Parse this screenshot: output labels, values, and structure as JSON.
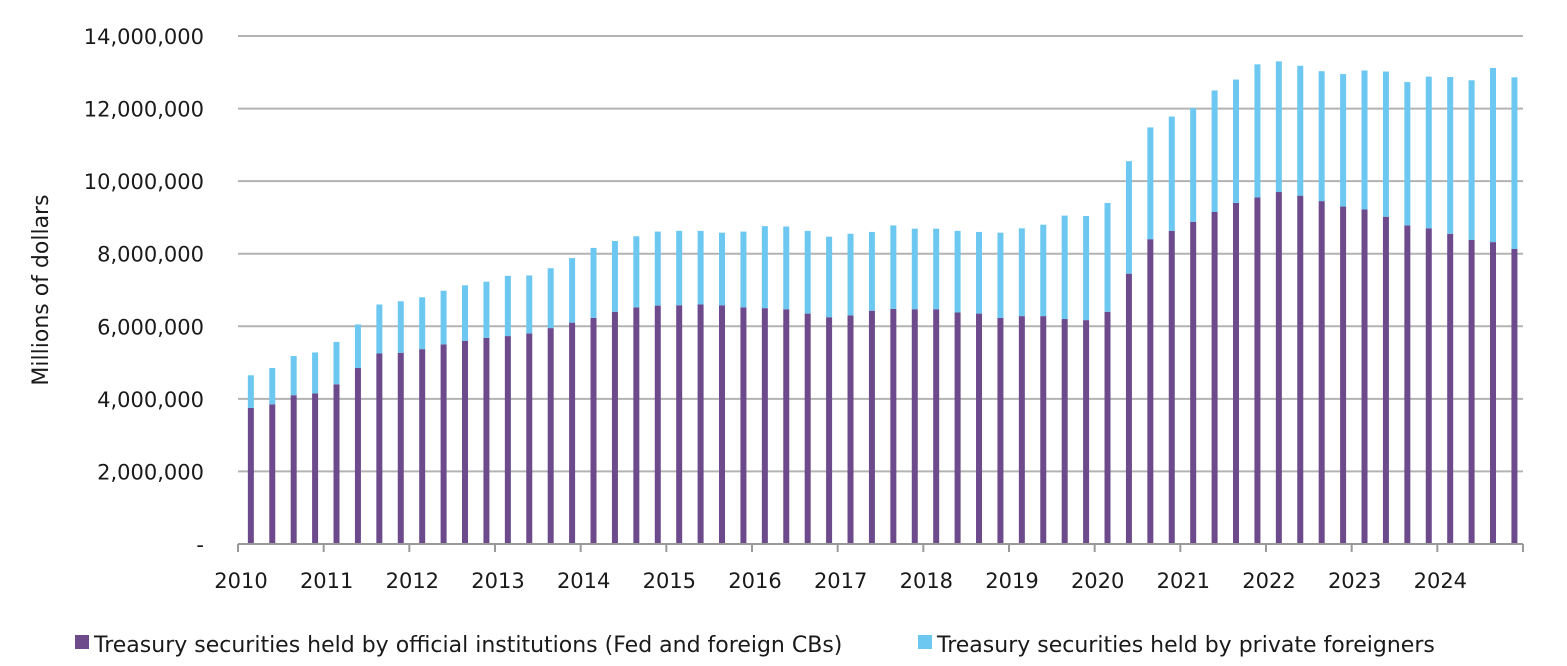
{
  "chart_data": {
    "type": "bar",
    "stacked": true,
    "ylabel": "Millions of dollars",
    "xlabel": "",
    "title": "",
    "ylim": [
      0,
      14000000
    ],
    "y_ticks": [
      0,
      2000000,
      4000000,
      6000000,
      8000000,
      10000000,
      12000000,
      14000000
    ],
    "y_tick_labels": [
      "-",
      "2,000,000",
      "4,000,000",
      "6,000,000",
      "8,000,000",
      "10,000,000",
      "12,000,000",
      "14,000,000"
    ],
    "x_tick_labels": [
      "2010",
      "2011",
      "2012",
      "2013",
      "2014",
      "2015",
      "2016",
      "2017",
      "2018",
      "2019",
      "2020",
      "2021",
      "2022",
      "2023",
      "2024"
    ],
    "grid": true,
    "legend_position": "bottom",
    "colors": {
      "official": "#6d4a8c",
      "private": "#6cc8f0",
      "grid": "#b3b3b3",
      "axis": "#999999"
    },
    "series": [
      {
        "name": "Treasury securities held by official institutions (Fed and foreign CBs)",
        "color": "#6d4a8c",
        "values": [
          3750000,
          3850000,
          4100000,
          4150000,
          4400000,
          4850000,
          5250000,
          5270000,
          5370000,
          5500000,
          5600000,
          5680000,
          5730000,
          5800000,
          5950000,
          6100000,
          6230000,
          6400000,
          6520000,
          6570000,
          6580000,
          6600000,
          6580000,
          6520000,
          6500000,
          6470000,
          6350000,
          6250000,
          6300000,
          6430000,
          6480000,
          6470000,
          6470000,
          6380000,
          6350000,
          6230000,
          6280000,
          6280000,
          6200000,
          6170000,
          6400000,
          7450000,
          8400000,
          8630000,
          8880000,
          9150000,
          9400000,
          9550000,
          9700000,
          9600000,
          9450000,
          9300000,
          9220000,
          9020000,
          8780000,
          8700000,
          8550000,
          8380000,
          8320000,
          8130000
        ]
      },
      {
        "name": "Treasury securities held by private foreigners",
        "color": "#6cc8f0",
        "values": [
          900000,
          1000000,
          1080000,
          1130000,
          1170000,
          1200000,
          1350000,
          1420000,
          1430000,
          1480000,
          1530000,
          1550000,
          1660000,
          1600000,
          1650000,
          1780000,
          1930000,
          1950000,
          1960000,
          2040000,
          2050000,
          2030000,
          2000000,
          2090000,
          2260000,
          2280000,
          2280000,
          2220000,
          2250000,
          2170000,
          2300000,
          2220000,
          2220000,
          2250000,
          2250000,
          2350000,
          2420000,
          2520000,
          2850000,
          2870000,
          3000000,
          3100000,
          3080000,
          3150000,
          3130000,
          3350000,
          3400000,
          3670000,
          3600000,
          3580000,
          3580000,
          3650000,
          3830000,
          4000000,
          3950000,
          4180000,
          4320000,
          4400000,
          4800000,
          4730000
        ]
      }
    ]
  }
}
